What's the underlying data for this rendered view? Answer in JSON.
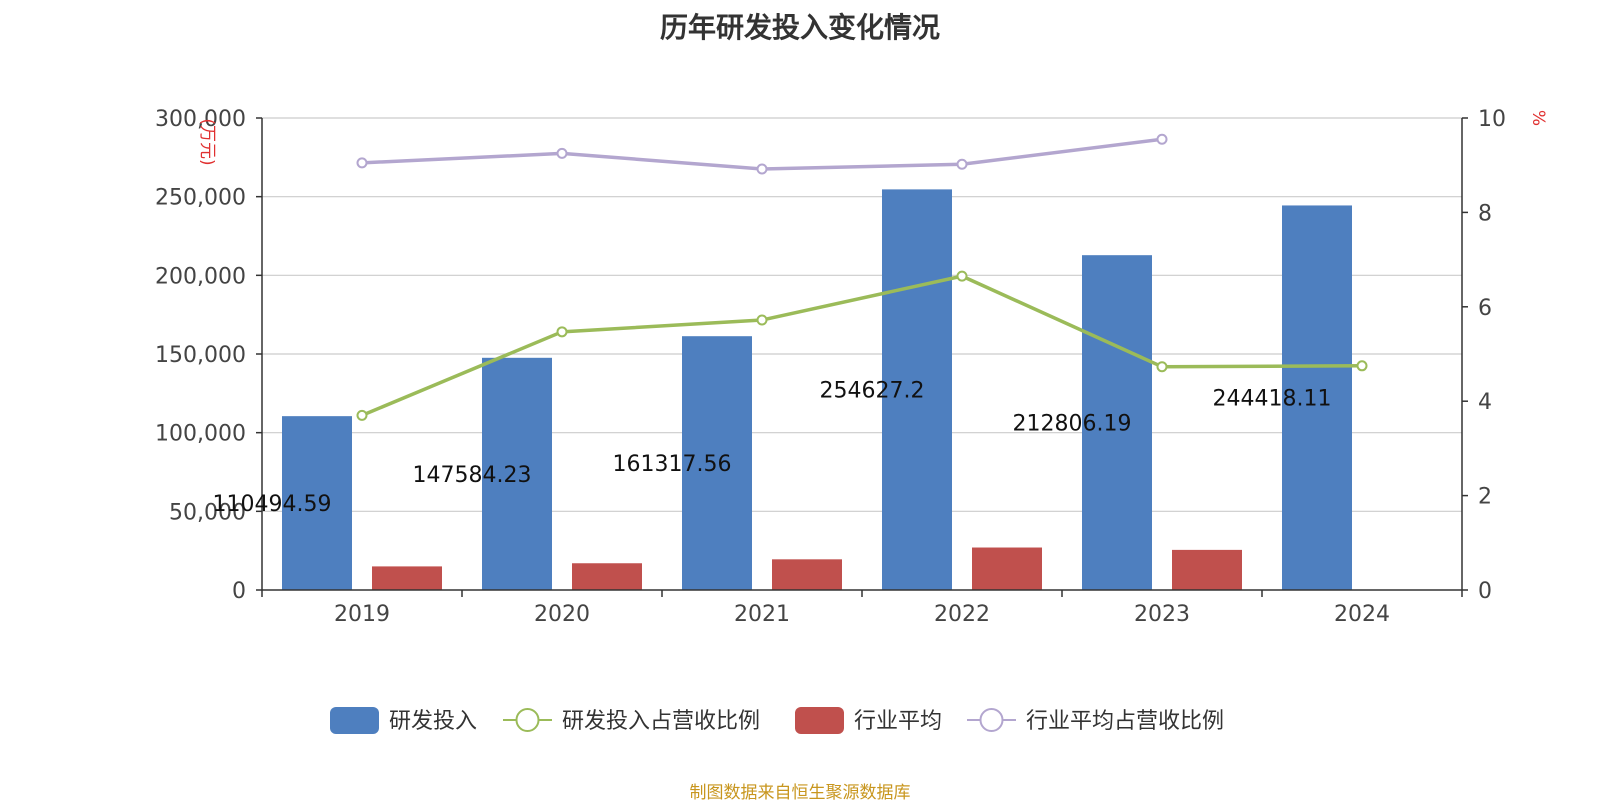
{
  "chart_data": {
    "type": "bar",
    "title": "历年研发投入变化情况",
    "categories": [
      "2019",
      "2020",
      "2021",
      "2022",
      "2023",
      "2024"
    ],
    "y_left": {
      "label": "(万元)",
      "ylim": [
        0,
        300000
      ],
      "ticks": [
        0,
        50000,
        100000,
        150000,
        200000,
        250000,
        300000
      ],
      "tick_labels": [
        "0",
        "50,000",
        "100,000",
        "150,000",
        "200,000",
        "250,000",
        "300,000"
      ]
    },
    "y_right": {
      "label": "%",
      "ylim": [
        0,
        10
      ],
      "ticks": [
        0,
        2,
        4,
        6,
        8,
        10
      ],
      "tick_labels": [
        "0",
        "2",
        "4",
        "6",
        "8",
        "10"
      ]
    },
    "series": [
      {
        "name": "研发投入",
        "kind": "bar",
        "axis": "left",
        "color": "#4e7fbf",
        "values": [
          110494.59,
          147584.23,
          161317.56,
          254627.2,
          212806.19,
          244418.11
        ],
        "data_labels": [
          "110494.59",
          "147584.23",
          "161317.56",
          "254627.2",
          "212806.19",
          "244418.11"
        ]
      },
      {
        "name": "研发投入占营收比例",
        "kind": "line",
        "axis": "right",
        "color": "#9bbb59",
        "values": [
          3.7,
          5.47,
          5.72,
          6.65,
          4.73,
          4.75
        ]
      },
      {
        "name": "行业平均",
        "kind": "bar",
        "axis": "left",
        "color": "#c0504d",
        "values": [
          15000,
          17000,
          19500,
          27000,
          25500,
          null
        ]
      },
      {
        "name": "行业平均占营收比例",
        "kind": "line",
        "axis": "right",
        "color": "#b3a6cf",
        "values": [
          9.05,
          9.25,
          8.92,
          9.02,
          9.55,
          null
        ]
      }
    ],
    "grid": true,
    "legend": "bottom-center",
    "source": "制图数据来自恒生聚源数据库"
  }
}
